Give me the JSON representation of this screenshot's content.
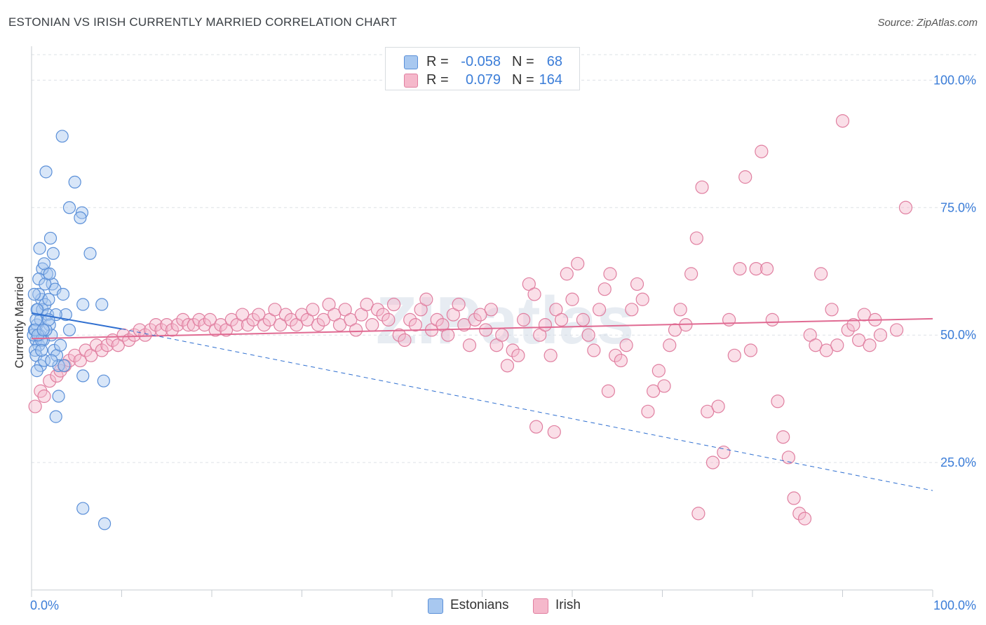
{
  "title": "ESTONIAN VS IRISH CURRENTLY MARRIED CORRELATION CHART",
  "source": "Source: ZipAtlas.com",
  "watermark": "ZIPatlas",
  "legend": {
    "rows": [
      {
        "r_label": "R =",
        "r_value": "-0.058",
        "n_label": "N =",
        "n_value": "68"
      },
      {
        "r_label": "R =",
        "r_value": "0.079",
        "n_label": "N =",
        "n_value": "164"
      }
    ]
  },
  "colors": {
    "estonians_fill": "#a8c8f0",
    "estonians_stroke": "#5a8fd8",
    "estonians_line": "#2f6fd0",
    "irish_fill": "#f5b8cb",
    "irish_stroke": "#e07fa0",
    "irish_line": "#e06a92",
    "tick_label": "#3b7dd8",
    "grid": "#dde1e6"
  },
  "chart_data": {
    "type": "scatter",
    "title": "ESTONIAN VS IRISH CURRENTLY MARRIED CORRELATION CHART",
    "xlabel": "",
    "ylabel": "Currently Married",
    "xlim": [
      0,
      100
    ],
    "ylim": [
      0,
      105
    ],
    "x_tick_labels": [
      "0.0%",
      "100.0%"
    ],
    "y_ticks": [
      25,
      50,
      75,
      100
    ],
    "y_tick_labels": [
      "25.0%",
      "50.0%",
      "75.0%",
      "100.0%"
    ],
    "grid": true,
    "legend_position": "bottom-center",
    "series": [
      {
        "name": "Estonians",
        "r": -0.058,
        "n": 68,
        "trend": {
          "x": [
            0,
            10
          ],
          "y": [
            54.3,
            51.2
          ],
          "dashed_extension": {
            "x": [
              10,
              100
            ],
            "y": [
              51.2,
              19.5
            ]
          }
        },
        "points": [
          [
            0.3,
            51
          ],
          [
            0.5,
            49
          ],
          [
            0.6,
            52
          ],
          [
            0.8,
            48
          ],
          [
            0.9,
            50
          ],
          [
            1.0,
            53
          ],
          [
            0.4,
            47
          ],
          [
            0.7,
            55
          ],
          [
            0.2,
            50
          ],
          [
            0.5,
            46
          ],
          [
            1.1,
            57
          ],
          [
            1.2,
            55
          ],
          [
            0.8,
            58
          ],
          [
            1.5,
            56
          ],
          [
            1.8,
            54
          ],
          [
            2.0,
            52
          ],
          [
            2.2,
            50
          ],
          [
            1.3,
            49
          ],
          [
            1.6,
            51
          ],
          [
            1.0,
            44
          ],
          [
            0.6,
            43
          ],
          [
            1.4,
            45
          ],
          [
            2.5,
            47
          ],
          [
            2.8,
            46
          ],
          [
            3.0,
            44
          ],
          [
            3.2,
            48
          ],
          [
            2.3,
            60
          ],
          [
            2.6,
            59
          ],
          [
            1.7,
            62
          ],
          [
            1.2,
            63
          ],
          [
            1.4,
            64
          ],
          [
            0.9,
            67
          ],
          [
            2.1,
            69
          ],
          [
            2.4,
            66
          ],
          [
            3.5,
            58
          ],
          [
            3.8,
            54
          ],
          [
            4.2,
            51
          ],
          [
            2.7,
            54
          ],
          [
            1.9,
            57
          ],
          [
            1.1,
            49
          ],
          [
            0.5,
            53
          ],
          [
            0.8,
            61
          ],
          [
            1.5,
            60
          ],
          [
            2.0,
            62
          ],
          [
            3.4,
            89
          ],
          [
            1.6,
            82
          ],
          [
            4.8,
            80
          ],
          [
            4.2,
            75
          ],
          [
            5.6,
            74
          ],
          [
            5.4,
            73
          ],
          [
            6.5,
            66
          ],
          [
            5.7,
            56
          ],
          [
            7.8,
            56
          ],
          [
            3.0,
            38
          ],
          [
            2.7,
            34
          ],
          [
            5.7,
            16
          ],
          [
            8.1,
            13
          ],
          [
            8.0,
            41
          ],
          [
            5.7,
            42
          ],
          [
            3.6,
            44
          ],
          [
            0.3,
            58
          ],
          [
            0.6,
            55
          ],
          [
            1.1,
            47
          ],
          [
            2.2,
            45
          ],
          [
            0.4,
            51
          ],
          [
            0.7,
            50
          ],
          [
            1.9,
            53
          ],
          [
            1.3,
            51
          ]
        ]
      },
      {
        "name": "Irish",
        "r": 0.079,
        "n": 164,
        "trend": {
          "x": [
            0,
            100
          ],
          "y": [
            49.3,
            53.2
          ]
        },
        "points": [
          [
            0.4,
            36
          ],
          [
            1.0,
            39
          ],
          [
            1.4,
            38
          ],
          [
            2.0,
            41
          ],
          [
            2.8,
            42
          ],
          [
            3.2,
            43
          ],
          [
            3.7,
            44
          ],
          [
            4.2,
            45
          ],
          [
            4.8,
            46
          ],
          [
            5.4,
            45
          ],
          [
            6.0,
            47
          ],
          [
            6.6,
            46
          ],
          [
            7.2,
            48
          ],
          [
            7.8,
            47
          ],
          [
            8.4,
            48
          ],
          [
            9.0,
            49
          ],
          [
            9.6,
            48
          ],
          [
            10.2,
            50
          ],
          [
            10.8,
            49
          ],
          [
            11.4,
            50
          ],
          [
            12.0,
            51
          ],
          [
            12.6,
            50
          ],
          [
            13.2,
            51
          ],
          [
            13.8,
            52
          ],
          [
            14.4,
            51
          ],
          [
            15.0,
            52
          ],
          [
            15.6,
            51
          ],
          [
            16.2,
            52
          ],
          [
            16.8,
            53
          ],
          [
            17.4,
            52
          ],
          [
            18.0,
            52
          ],
          [
            18.6,
            53
          ],
          [
            19.2,
            52
          ],
          [
            19.8,
            53
          ],
          [
            20.4,
            51
          ],
          [
            21.0,
            52
          ],
          [
            21.6,
            51
          ],
          [
            22.2,
            53
          ],
          [
            22.8,
            52
          ],
          [
            23.4,
            54
          ],
          [
            24.0,
            52
          ],
          [
            24.6,
            53
          ],
          [
            25.2,
            54
          ],
          [
            25.8,
            52
          ],
          [
            26.4,
            53
          ],
          [
            27.0,
            55
          ],
          [
            27.6,
            52
          ],
          [
            28.2,
            54
          ],
          [
            28.8,
            53
          ],
          [
            29.4,
            52
          ],
          [
            30.0,
            54
          ],
          [
            30.6,
            53
          ],
          [
            31.2,
            55
          ],
          [
            31.8,
            52
          ],
          [
            32.4,
            53
          ],
          [
            33.0,
            56
          ],
          [
            33.6,
            54
          ],
          [
            34.2,
            52
          ],
          [
            34.8,
            55
          ],
          [
            35.4,
            53
          ],
          [
            36.0,
            51
          ],
          [
            36.6,
            54
          ],
          [
            37.2,
            56
          ],
          [
            37.8,
            52
          ],
          [
            38.4,
            55
          ],
          [
            39.0,
            54
          ],
          [
            39.6,
            53
          ],
          [
            40.2,
            56
          ],
          [
            40.8,
            50
          ],
          [
            41.4,
            49
          ],
          [
            42.0,
            53
          ],
          [
            42.6,
            52
          ],
          [
            43.2,
            55
          ],
          [
            43.8,
            57
          ],
          [
            44.4,
            51
          ],
          [
            45.0,
            53
          ],
          [
            45.6,
            52
          ],
          [
            46.2,
            50
          ],
          [
            46.8,
            54
          ],
          [
            47.4,
            56
          ],
          [
            48.0,
            52
          ],
          [
            48.6,
            48
          ],
          [
            49.2,
            53
          ],
          [
            49.8,
            54
          ],
          [
            50.4,
            51
          ],
          [
            51.0,
            55
          ],
          [
            51.6,
            48
          ],
          [
            52.2,
            50
          ],
          [
            52.8,
            44
          ],
          [
            53.4,
            47
          ],
          [
            54.0,
            46
          ],
          [
            54.6,
            53
          ],
          [
            55.2,
            60
          ],
          [
            55.8,
            58
          ],
          [
            56.4,
            50
          ],
          [
            57.0,
            52
          ],
          [
            57.6,
            46
          ],
          [
            58.2,
            55
          ],
          [
            58.8,
            53
          ],
          [
            59.4,
            62
          ],
          [
            60.0,
            57
          ],
          [
            60.6,
            64
          ],
          [
            61.2,
            53
          ],
          [
            61.8,
            50
          ],
          [
            62.4,
            47
          ],
          [
            63.0,
            55
          ],
          [
            63.6,
            59
          ],
          [
            64.2,
            62
          ],
          [
            64.8,
            46
          ],
          [
            65.4,
            45
          ],
          [
            66.0,
            48
          ],
          [
            66.6,
            55
          ],
          [
            67.2,
            60
          ],
          [
            67.8,
            57
          ],
          [
            68.4,
            35
          ],
          [
            69.0,
            39
          ],
          [
            69.6,
            43
          ],
          [
            70.2,
            40
          ],
          [
            70.8,
            48
          ],
          [
            71.4,
            51
          ],
          [
            72.0,
            55
          ],
          [
            72.6,
            52
          ],
          [
            73.2,
            62
          ],
          [
            73.8,
            69
          ],
          [
            74.4,
            79
          ],
          [
            75.0,
            35
          ],
          [
            75.6,
            25
          ],
          [
            76.2,
            36
          ],
          [
            76.8,
            27
          ],
          [
            77.4,
            53
          ],
          [
            78.0,
            46
          ],
          [
            78.6,
            63
          ],
          [
            79.2,
            81
          ],
          [
            79.8,
            47
          ],
          [
            80.4,
            63
          ],
          [
            81.0,
            86
          ],
          [
            81.6,
            63
          ],
          [
            82.2,
            53
          ],
          [
            82.8,
            37
          ],
          [
            83.4,
            30
          ],
          [
            84.0,
            26
          ],
          [
            84.6,
            18
          ],
          [
            85.2,
            15
          ],
          [
            85.8,
            14
          ],
          [
            86.4,
            50
          ],
          [
            87.0,
            48
          ],
          [
            87.6,
            62
          ],
          [
            88.2,
            47
          ],
          [
            88.8,
            55
          ],
          [
            89.4,
            48
          ],
          [
            90.0,
            92
          ],
          [
            90.6,
            51
          ],
          [
            91.2,
            52
          ],
          [
            91.8,
            49
          ],
          [
            92.4,
            54
          ],
          [
            93.0,
            48
          ],
          [
            93.6,
            53
          ],
          [
            94.2,
            50
          ],
          [
            96.0,
            51
          ],
          [
            97.0,
            75
          ],
          [
            74.0,
            15
          ],
          [
            56.0,
            32
          ],
          [
            58.0,
            31
          ],
          [
            64.0,
            39
          ]
        ]
      }
    ]
  }
}
